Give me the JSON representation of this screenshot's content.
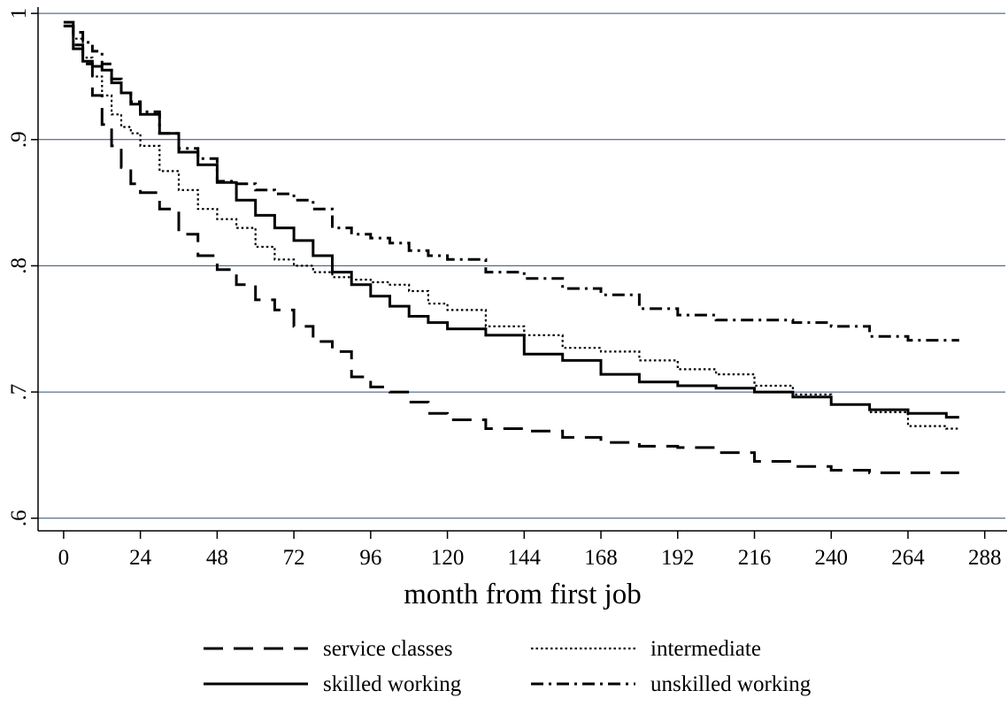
{
  "chart_data": {
    "type": "line",
    "title": "",
    "xlabel": "month from first job",
    "ylabel": "",
    "xlim": [
      -8,
      295
    ],
    "ylim": [
      0.59,
      1.005
    ],
    "x_ticks": [
      0,
      24,
      48,
      72,
      96,
      120,
      144,
      168,
      192,
      216,
      240,
      264,
      288
    ],
    "x_tick_labels": [
      "0",
      "24",
      "48",
      "72",
      "96",
      "120",
      "144",
      "168",
      "192",
      "216",
      "240",
      "264",
      "288"
    ],
    "y_ticks": [
      0.6,
      0.7,
      0.8,
      0.9,
      1.0
    ],
    "y_tick_labels": [
      ".6",
      ".7",
      ".8",
      ".9",
      "1"
    ],
    "grid": true,
    "gridline_color": "#2f4f6f",
    "legend_position": "bottom",
    "series": [
      {
        "name": "service classes",
        "style": "dashed",
        "x": [
          0,
          3,
          6,
          9,
          12,
          15,
          18,
          21,
          24,
          30,
          36,
          42,
          48,
          54,
          60,
          66,
          72,
          78,
          84,
          90,
          96,
          102,
          108,
          114,
          120,
          132,
          144,
          156,
          168,
          180,
          192,
          204,
          216,
          228,
          240,
          252,
          264,
          276,
          280
        ],
        "y": [
          0.99,
          0.975,
          0.96,
          0.935,
          0.912,
          0.895,
          0.878,
          0.865,
          0.858,
          0.845,
          0.825,
          0.808,
          0.797,
          0.785,
          0.773,
          0.765,
          0.752,
          0.74,
          0.732,
          0.712,
          0.704,
          0.7,
          0.692,
          0.683,
          0.678,
          0.671,
          0.669,
          0.664,
          0.66,
          0.657,
          0.656,
          0.652,
          0.645,
          0.641,
          0.638,
          0.636,
          0.636,
          0.636,
          0.636
        ]
      },
      {
        "name": "intermediate",
        "style": "dotted",
        "x": [
          0,
          3,
          6,
          9,
          12,
          15,
          18,
          21,
          24,
          30,
          36,
          42,
          48,
          54,
          60,
          66,
          72,
          78,
          84,
          90,
          96,
          102,
          108,
          114,
          120,
          132,
          144,
          156,
          168,
          180,
          192,
          204,
          216,
          228,
          240,
          252,
          264,
          276,
          280
        ],
        "y": [
          0.99,
          0.98,
          0.965,
          0.95,
          0.935,
          0.92,
          0.91,
          0.905,
          0.895,
          0.875,
          0.86,
          0.845,
          0.837,
          0.83,
          0.815,
          0.805,
          0.8,
          0.795,
          0.791,
          0.789,
          0.787,
          0.785,
          0.78,
          0.77,
          0.765,
          0.752,
          0.745,
          0.735,
          0.732,
          0.725,
          0.718,
          0.714,
          0.705,
          0.698,
          0.69,
          0.684,
          0.673,
          0.671,
          0.671
        ]
      },
      {
        "name": "skilled working",
        "style": "solid",
        "x": [
          0,
          3,
          6,
          9,
          12,
          15,
          18,
          21,
          24,
          30,
          36,
          42,
          48,
          54,
          60,
          66,
          72,
          78,
          84,
          90,
          96,
          102,
          108,
          114,
          120,
          132,
          144,
          156,
          168,
          180,
          192,
          204,
          216,
          228,
          240,
          252,
          264,
          276,
          280
        ],
        "y": [
          0.99,
          0.972,
          0.962,
          0.958,
          0.955,
          0.945,
          0.937,
          0.928,
          0.92,
          0.905,
          0.89,
          0.88,
          0.866,
          0.852,
          0.84,
          0.83,
          0.82,
          0.808,
          0.795,
          0.785,
          0.776,
          0.768,
          0.76,
          0.755,
          0.75,
          0.745,
          0.73,
          0.725,
          0.714,
          0.708,
          0.705,
          0.703,
          0.7,
          0.696,
          0.69,
          0.686,
          0.683,
          0.68,
          0.68
        ]
      },
      {
        "name": "unskilled working",
        "style": "dash-dot",
        "x": [
          0,
          3,
          6,
          9,
          12,
          15,
          18,
          21,
          24,
          30,
          36,
          42,
          48,
          54,
          60,
          66,
          72,
          78,
          84,
          90,
          96,
          102,
          108,
          114,
          120,
          132,
          144,
          156,
          168,
          180,
          192,
          204,
          216,
          228,
          240,
          252,
          264,
          276,
          280
        ],
        "y": [
          0.993,
          0.985,
          0.977,
          0.97,
          0.96,
          0.948,
          0.937,
          0.93,
          0.922,
          0.905,
          0.893,
          0.885,
          0.867,
          0.865,
          0.86,
          0.857,
          0.852,
          0.845,
          0.83,
          0.825,
          0.822,
          0.818,
          0.812,
          0.808,
          0.805,
          0.795,
          0.79,
          0.782,
          0.777,
          0.766,
          0.761,
          0.757,
          0.757,
          0.755,
          0.752,
          0.744,
          0.741,
          0.741,
          0.741
        ]
      }
    ]
  }
}
